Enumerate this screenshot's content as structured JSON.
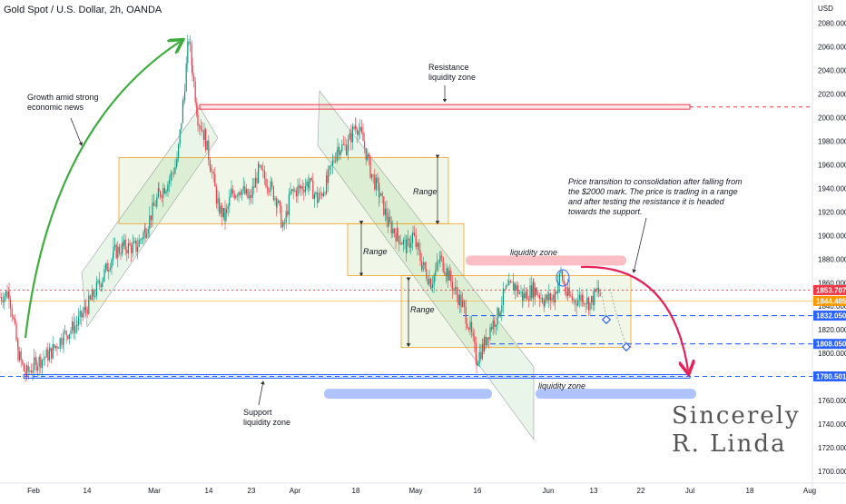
{
  "header": {
    "title": "Gold Spot / U.S. Dollar, 2h, OANDA"
  },
  "chart_data": {
    "type": "candlestick",
    "currency_label": "USD",
    "ylim": [
      1690,
      2092
    ],
    "y_ticks": [
      2080,
      2060,
      2040,
      2020,
      2000,
      1980,
      1960,
      1940,
      1920,
      1900,
      1880,
      1860,
      1840,
      1820,
      1800,
      1780,
      1760,
      1740,
      1720,
      1700
    ],
    "y_tick_labels": [
      "2080.000",
      "2060.000",
      "2040.000",
      "2020.000",
      "2000.000",
      "1980.000",
      "1960.000",
      "1940.000",
      "1920.000",
      "1900.000",
      "1880.000",
      "1860.000",
      "1840.000",
      "1820.000",
      "1800.000",
      "1780.000",
      "1760.000",
      "1740.000",
      "1720.000",
      "1700.000"
    ],
    "x_ticks": [
      "Feb",
      "14",
      "Mar",
      "14",
      "23",
      "Apr",
      "18",
      "May",
      "16",
      "Jun",
      "13",
      "22",
      "Jul",
      "18",
      "Aug"
    ],
    "x_tick_pos": [
      37,
      96,
      170,
      230,
      277,
      325,
      392,
      458,
      526,
      604,
      654,
      706,
      760,
      826,
      892
    ],
    "price_tags": [
      {
        "value": 1853.707,
        "label": "1853.707",
        "color": "#f23645"
      },
      {
        "value": 1844.485,
        "label": "1844.485",
        "color": "#ff9800"
      },
      {
        "value": 1832.05,
        "label": "1832.050",
        "color": "#2962ff"
      },
      {
        "value": 1808.05,
        "label": "1808.050",
        "color": "#2962ff"
      },
      {
        "value": 1780.501,
        "label": "1780.501",
        "color": "#2962ff"
      }
    ],
    "levels": {
      "resistance": 2009,
      "support": 1780.5,
      "current": 1853.7,
      "last": 1844.5,
      "target1": 1832.05,
      "target2": 1808.05
    },
    "path": [
      [
        0,
        1848
      ],
      [
        10,
        1852
      ],
      [
        20,
        1800
      ],
      [
        28,
        1782
      ],
      [
        40,
        1792
      ],
      [
        55,
        1800
      ],
      [
        70,
        1815
      ],
      [
        85,
        1825
      ],
      [
        100,
        1845
      ],
      [
        115,
        1868
      ],
      [
        125,
        1885
      ],
      [
        135,
        1890
      ],
      [
        150,
        1890
      ],
      [
        160,
        1905
      ],
      [
        175,
        1935
      ],
      [
        185,
        1945
      ],
      [
        195,
        1962
      ],
      [
        202,
        2015
      ],
      [
        208,
        2068
      ],
      [
        212,
        2040
      ],
      [
        218,
        2000
      ],
      [
        225,
        1985
      ],
      [
        232,
        1960
      ],
      [
        240,
        1925
      ],
      [
        248,
        1915
      ],
      [
        255,
        1935
      ],
      [
        265,
        1940
      ],
      [
        275,
        1930
      ],
      [
        285,
        1955
      ],
      [
        295,
        1945
      ],
      [
        305,
        1930
      ],
      [
        312,
        1905
      ],
      [
        320,
        1935
      ],
      [
        330,
        1940
      ],
      [
        340,
        1945
      ],
      [
        350,
        1930
      ],
      [
        360,
        1945
      ],
      [
        372,
        1975
      ],
      [
        382,
        1975
      ],
      [
        392,
        1995
      ],
      [
        400,
        1980
      ],
      [
        408,
        1955
      ],
      [
        418,
        1935
      ],
      [
        428,
        1910
      ],
      [
        438,
        1900
      ],
      [
        448,
        1890
      ],
      [
        455,
        1900
      ],
      [
        465,
        1875
      ],
      [
        475,
        1860
      ],
      [
        485,
        1880
      ],
      [
        492,
        1870
      ],
      [
        500,
        1855
      ],
      [
        510,
        1840
      ],
      [
        518,
        1820
      ],
      [
        525,
        1795
      ],
      [
        532,
        1805
      ],
      [
        540,
        1822
      ],
      [
        548,
        1832
      ],
      [
        556,
        1852
      ],
      [
        566,
        1858
      ],
      [
        576,
        1848
      ],
      [
        588,
        1855
      ],
      [
        600,
        1845
      ],
      [
        610,
        1848
      ],
      [
        618,
        1868
      ],
      [
        624,
        1850
      ],
      [
        632,
        1845
      ],
      [
        642,
        1848
      ],
      [
        650,
        1842
      ],
      [
        658,
        1853
      ],
      [
        662,
        1848
      ]
    ],
    "annotations": {
      "growth": [
        "Growth amid strong",
        "economic news"
      ],
      "resistance_zone": [
        "Resistance",
        "liquidity zone"
      ],
      "support_zone": [
        "Support",
        "liquidity zone"
      ],
      "range1": "Range",
      "range2": "Range",
      "range3": "Range",
      "liq_upper": "liquidity zone",
      "liq_lower": "liquidity zone",
      "note": [
        "Price transition to consolidation after falling from",
        "the $2000 mark. The price is trading in a range",
        "and after testing the resistance it is headed",
        "towards the support."
      ],
      "signature": [
        "Sincerely",
        "R. Linda"
      ]
    },
    "colors": {
      "up": "#089981",
      "down": "#f23645",
      "growth_arrow": "#3dad3d",
      "curve_arrow": "#e8205a",
      "support": "#2962ff",
      "resistance": "#f23645"
    }
  }
}
